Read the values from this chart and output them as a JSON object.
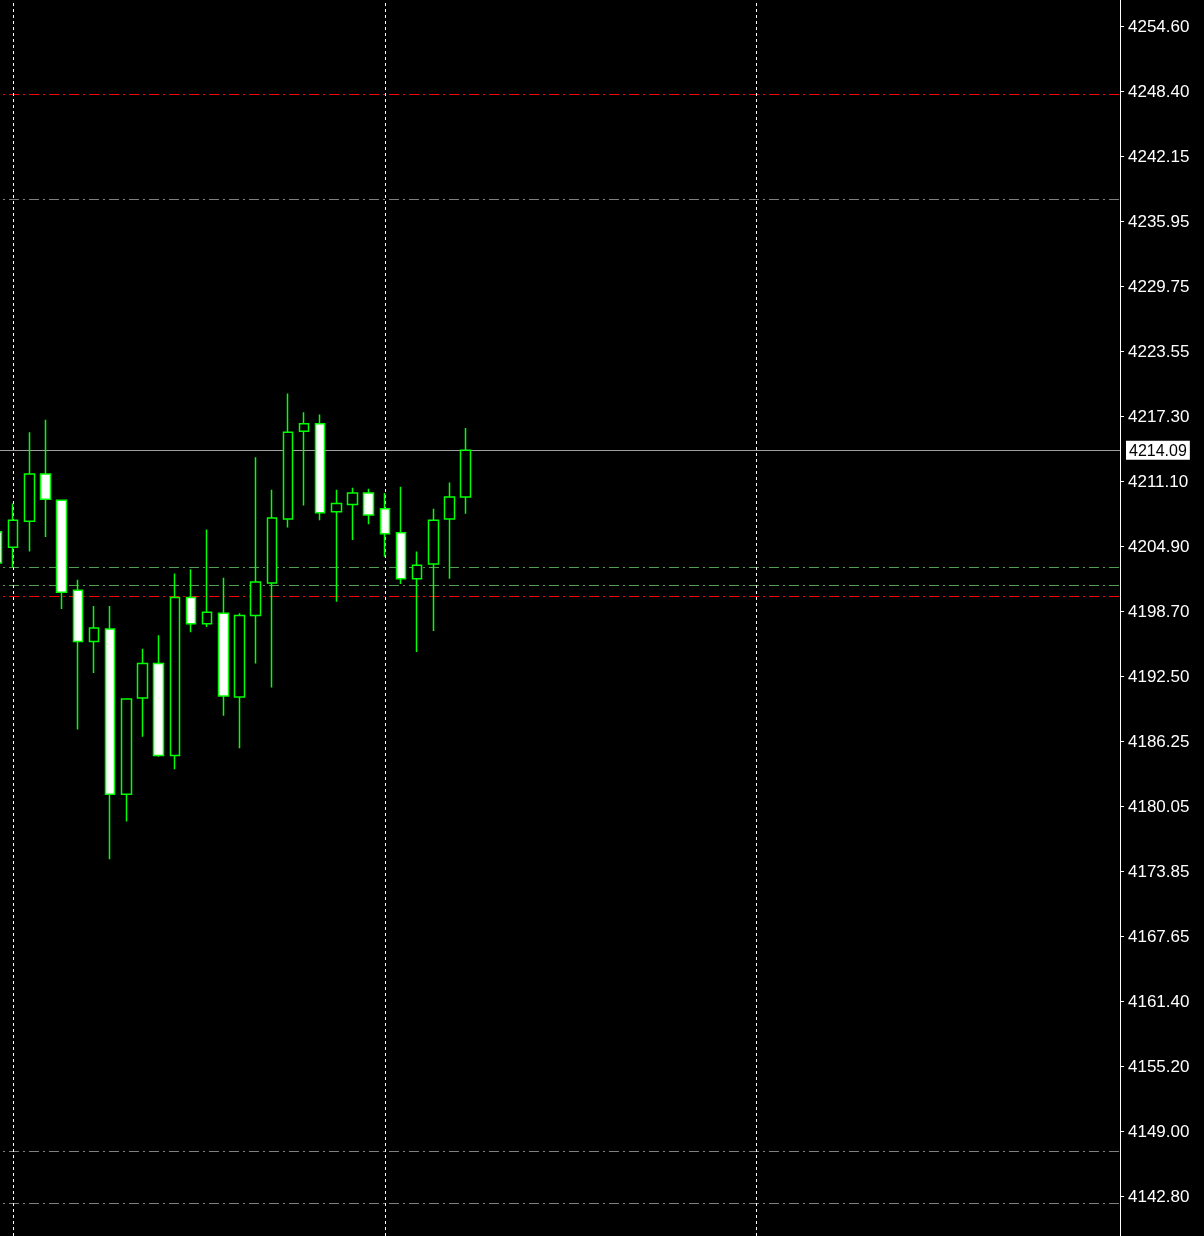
{
  "chart_data": {
    "type": "candlestick",
    "categories": [
      null,
      null,
      null,
      null,
      null,
      null,
      null,
      null,
      null,
      null,
      null,
      null,
      null,
      null,
      null,
      null,
      null,
      null,
      null,
      null,
      null,
      null,
      null,
      null,
      null,
      null,
      null,
      null,
      null,
      null,
      null,
      null,
      null,
      null,
      null,
      null,
      null,
      null,
      null,
      null,
      null,
      null,
      null,
      null,
      null,
      null,
      null,
      null,
      null,
      null,
      null,
      null,
      null,
      null,
      null,
      null,
      null,
      null,
      null,
      null,
      null,
      null,
      null,
      null,
      null,
      null,
      null,
      null,
      null,
      null
    ],
    "ohlc": [
      [
        4206.3,
        4206.4,
        4203.0,
        4203.3
      ],
      [
        4204.8,
        4209.0,
        4202.9,
        4207.4
      ],
      [
        4207.3,
        4215.8,
        4204.4,
        4211.8
      ],
      [
        4211.8,
        4217.0,
        4205.8,
        4209.4
      ],
      [
        4209.3,
        4209.3,
        4198.9,
        4200.5
      ],
      [
        4200.7,
        4201.7,
        4187.4,
        4195.8
      ],
      [
        4195.8,
        4199.2,
        4192.8,
        4197.1
      ],
      [
        4197.0,
        4199.2,
        4175.0,
        4181.2
      ],
      [
        4181.2,
        4190.3,
        4178.6,
        4190.3
      ],
      [
        4190.4,
        4195.1,
        4186.7,
        4193.7
      ],
      [
        4193.7,
        4196.4,
        4184.8,
        4184.9
      ],
      [
        4184.9,
        4202.3,
        4183.6,
        4200.0
      ],
      [
        4200.0,
        4202.7,
        4196.7,
        4197.5
      ],
      [
        4197.5,
        4206.5,
        4197.2,
        4198.6
      ],
      [
        4198.5,
        4201.9,
        4188.7,
        4190.6
      ],
      [
        4190.5,
        4198.5,
        4185.6,
        4198.3
      ],
      [
        4198.3,
        4213.4,
        4193.7,
        4201.5
      ],
      [
        4201.4,
        4210.3,
        4191.4,
        4207.6
      ],
      [
        4207.5,
        4219.5,
        4206.7,
        4215.8
      ],
      [
        4215.9,
        4217.7,
        4208.8,
        4216.6
      ],
      [
        4216.6,
        4217.5,
        4207.4,
        4208.1
      ],
      [
        4208.2,
        4210.3,
        4199.6,
        4209.0
      ],
      [
        4208.9,
        4210.5,
        4205.5,
        4210.0
      ],
      [
        4210.0,
        4210.4,
        4207.0,
        4207.9
      ],
      [
        4208.5,
        4210.0,
        4203.9,
        4206.1
      ],
      [
        4206.2,
        4210.6,
        4201.3,
        4201.8
      ],
      [
        4201.8,
        4204.4,
        4194.8,
        4203.1
      ],
      [
        4203.2,
        4208.5,
        4196.8,
        4207.4
      ],
      [
        4207.5,
        4211.0,
        4201.8,
        4209.6
      ],
      [
        4209.6,
        4216.2,
        4208.0,
        4214.09
      ],
      null,
      null,
      null,
      null,
      null,
      null,
      null,
      null,
      null,
      null,
      null,
      null,
      null,
      null,
      null,
      null,
      null,
      null,
      null,
      null,
      null,
      null,
      null,
      null,
      null,
      null,
      null,
      null,
      null,
      null,
      null,
      null,
      null,
      null,
      null,
      null,
      null,
      null,
      null,
      null
    ],
    "color": "#00ff00",
    "ylim": [
      4139.0,
      4257.1
    ],
    "yticks": [
      {
        "value": 4254.6,
        "label": "4254.60"
      },
      {
        "value": 4248.4,
        "label": "4248.40"
      },
      {
        "value": 4242.15,
        "label": "4242.15"
      },
      {
        "value": 4235.95,
        "label": "4235.95"
      },
      {
        "value": 4229.75,
        "label": "4229.75"
      },
      {
        "value": 4223.55,
        "label": "4223.55"
      },
      {
        "value": 4217.3,
        "label": "4217.30"
      },
      {
        "value": 4211.1,
        "label": "4211.10"
      },
      {
        "value": 4204.9,
        "label": "4204.90"
      },
      {
        "value": 4198.7,
        "label": "4198.70"
      },
      {
        "value": 4192.5,
        "label": "4192.50"
      },
      {
        "value": 4186.25,
        "label": "4186.25"
      },
      {
        "value": 4180.05,
        "label": "4180.05"
      },
      {
        "value": 4173.85,
        "label": "4173.85"
      },
      {
        "value": 4167.65,
        "label": "4167.65"
      },
      {
        "value": 4161.4,
        "label": "4161.40"
      },
      {
        "value": 4155.2,
        "label": "4155.20"
      },
      {
        "value": 4149.0,
        "label": "4149.00"
      },
      {
        "value": 4142.8,
        "label": "4142.80"
      }
    ],
    "tick_labels": "y",
    "grid": "x",
    "ref_lines": [
      {
        "axis": "y",
        "value": 4248.1,
        "color": "#ff0000",
        "line_style": "dashdot"
      },
      {
        "axis": "y",
        "value": 4200.1,
        "color": "#ff0000",
        "line_style": "dashdot"
      },
      {
        "axis": "y",
        "value": 4238.1,
        "color": "#808080",
        "line_style": "dashdot"
      },
      {
        "axis": "y",
        "value": 4202.9,
        "color": "#4f9f4f",
        "line_style": "dashdot"
      },
      {
        "axis": "y",
        "value": 4201.2,
        "color": "#4f9f4f",
        "line_style": "dashdot"
      },
      {
        "axis": "y",
        "value": 4147.1,
        "color": "#808080",
        "line_style": "dashdot"
      },
      {
        "axis": "y",
        "value": 4142.1,
        "color": "#808080",
        "line_style": "dashdot"
      },
      {
        "axis": "y",
        "value": 4214.09,
        "label": "4214.09",
        "color": "#a0a0a0",
        "line_style": "solid"
      }
    ]
  }
}
